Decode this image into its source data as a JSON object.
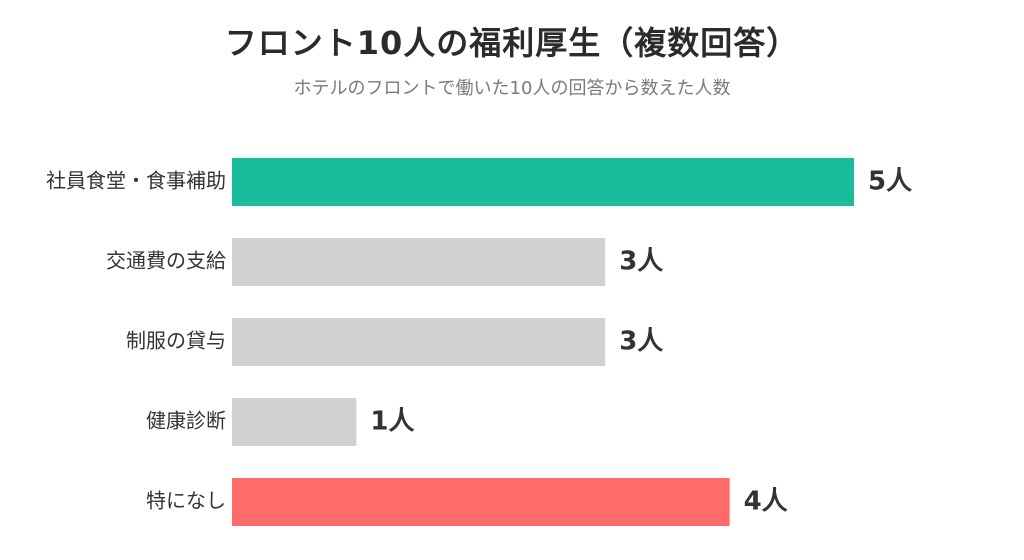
{
  "colors": {
    "default_bar": "#d0d0d0",
    "highlight_top": "#1abc9c",
    "highlight_none": "#ff6b6b"
  },
  "chart_data": {
    "type": "bar",
    "orientation": "horizontal",
    "title": "フロント10人の福利厚生（複数回答）",
    "subtitle": "ホテルのフロントで働いた10人の回答から数えた人数",
    "xlabel": "",
    "ylabel": "",
    "value_suffix": "人",
    "xlim": [
      0,
      5
    ],
    "grid": false,
    "legend": "none",
    "categories": [
      "社員食堂・食事補助",
      "交通費の支給",
      "制服の貸与",
      "健康診断",
      "特になし"
    ],
    "values": [
      5,
      3,
      3,
      1,
      4
    ],
    "bar_colors": [
      "#1abc9c",
      "#d0d0d0",
      "#d0d0d0",
      "#d0d0d0",
      "#ff6b6b"
    ]
  }
}
